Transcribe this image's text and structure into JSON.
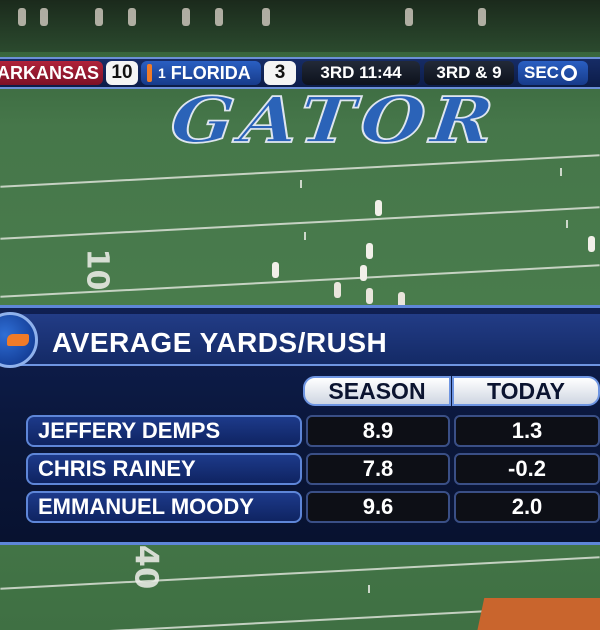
{
  "scorebug": {
    "away_team": "ARKANSAS",
    "away_score": "10",
    "home_rank": "1",
    "home_team": "FLORIDA",
    "home_score": "3",
    "clock": "3RD 11:44",
    "down_distance": "3RD & 9",
    "network": "SEC",
    "network_icon": "network-logo-icon"
  },
  "field": {
    "endzone_text": "GATOR",
    "yard_numbers": [
      "10",
      "40"
    ]
  },
  "stats_panel": {
    "title": "AVERAGE YARDS/RUSH",
    "logo_icon": "gator-logo-icon",
    "columns": [
      "SEASON",
      "TODAY"
    ],
    "rows": [
      {
        "name": "JEFFERY DEMPS",
        "season": "8.9",
        "today": "1.3"
      },
      {
        "name": "CHRIS RAINEY",
        "season": "7.8",
        "today": "-0.2"
      },
      {
        "name": "EMMANUEL MOODY",
        "season": "9.6",
        "today": "2.0"
      }
    ]
  },
  "colors": {
    "away_team": "#9c1a32",
    "home_team": "#2a5fc2",
    "panel_bg": "#0f1f52",
    "accent_orange": "#f07b28"
  }
}
